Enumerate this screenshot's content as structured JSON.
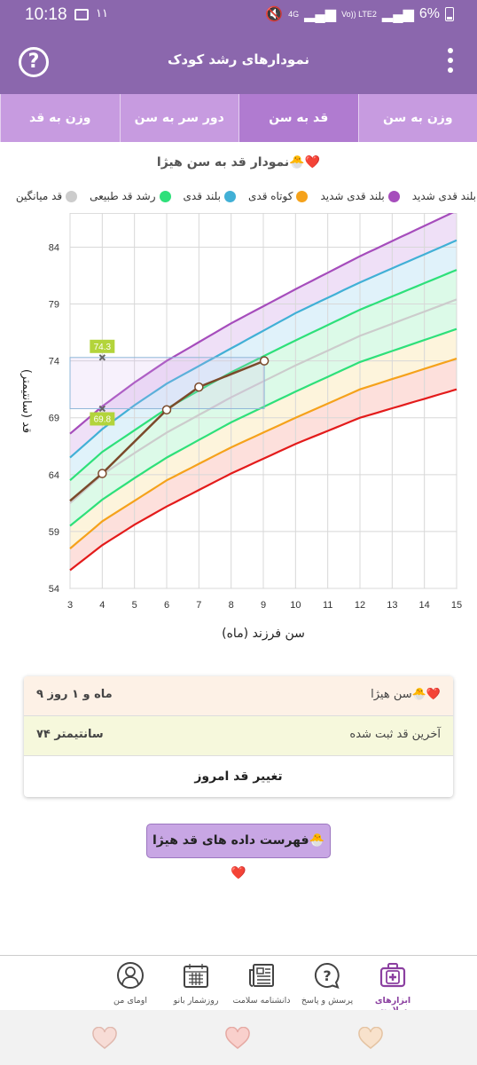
{
  "status": {
    "time": "10:18",
    "notif": "۱۱",
    "net": "4G",
    "lte": "Vo)) LTE2",
    "battery": "6%"
  },
  "app": {
    "title": "نمودارهای رشد کودک"
  },
  "tabs": [
    "وزن به سن",
    "قد به سن",
    "دور سر به سن",
    "وزن به قد"
  ],
  "chart_title": "نمودار قد به سن هیژا🐣❤️",
  "legend": [
    {
      "label": "بلند قدی شدید",
      "color": "#a64dbc"
    },
    {
      "label": "کوتاه قدی",
      "color": "#f5a21b"
    },
    {
      "label": "بلند قدی",
      "color": "#41b0d6"
    },
    {
      "label": "رشد قد طبیعی",
      "color": "#2ee07a"
    },
    {
      "label": "قد میانگین",
      "color": "#cccccc"
    }
  ],
  "legend_cut": {
    "label": "بلند قدی شدید",
    "color": "#e31b1b"
  },
  "chart_data": {
    "type": "line",
    "xlabel": "سن فرزند (ماه)",
    "ylabel": "قد (سانتیمتر)",
    "xlim": [
      3,
      15
    ],
    "ylim": [
      54,
      87
    ],
    "xticks": [
      3,
      4,
      5,
      6,
      7,
      8,
      9,
      10,
      11,
      12,
      13,
      14,
      15
    ],
    "yticks": [
      54,
      59,
      64,
      69,
      74,
      79,
      84
    ],
    "series": [
      {
        "color": "#a64dbc",
        "x": [
          3,
          4,
          5,
          6,
          8,
          10,
          12,
          15
        ],
        "y": [
          67.6,
          70.0,
          72.1,
          74.0,
          77.3,
          80.3,
          83.2,
          87.2
        ]
      },
      {
        "color": "#41b0d6",
        "x": [
          3,
          4,
          5,
          6,
          8,
          10,
          12,
          15
        ],
        "y": [
          65.5,
          68.0,
          70.1,
          72.0,
          75.1,
          78.2,
          80.9,
          84.6
        ]
      },
      {
        "color": "#2ee07a",
        "x": [
          3,
          4,
          5,
          6,
          8,
          10,
          12,
          15
        ],
        "y": [
          63.5,
          66.0,
          67.9,
          69.8,
          73.0,
          75.8,
          78.5,
          82.0
        ]
      },
      {
        "color": "#cccccc",
        "x": [
          3,
          4,
          5,
          6,
          8,
          10,
          12,
          15
        ],
        "y": [
          61.5,
          64.0,
          65.9,
          67.7,
          70.8,
          73.6,
          76.2,
          79.4
        ]
      },
      {
        "color": "#2ee07a",
        "x": [
          3,
          4,
          5,
          6,
          8,
          10,
          12,
          15
        ],
        "y": [
          59.5,
          61.8,
          63.7,
          65.5,
          68.6,
          71.3,
          73.9,
          76.8
        ]
      },
      {
        "color": "#f5a21b",
        "x": [
          3,
          4,
          5,
          6,
          8,
          10,
          12,
          15
        ],
        "y": [
          57.5,
          59.9,
          61.7,
          63.5,
          66.4,
          69.0,
          71.5,
          74.2
        ]
      },
      {
        "color": "#e31b1b",
        "x": [
          3,
          4,
          5,
          6,
          8,
          10,
          12,
          15
        ],
        "y": [
          55.6,
          57.8,
          59.6,
          61.2,
          64.1,
          66.7,
          69.0,
          71.5
        ]
      }
    ],
    "child": {
      "color": "#7b4a2b",
      "x": [
        3,
        4,
        6,
        7,
        9.03
      ],
      "y": [
        61.7,
        64.1,
        69.7,
        71.7,
        74.0
      ]
    },
    "markers": [
      {
        "x": 4,
        "y": 74.3,
        "label": "74.3"
      },
      {
        "x": 4,
        "y": 69.8,
        "label": "69.8"
      }
    ],
    "highlight": {
      "x0": 3,
      "x1": 9.03,
      "y0": 69.8,
      "y1": 74.3
    }
  },
  "info": {
    "name_label": "سن هیژا🐣❤️",
    "age_value": "۹ ماه و ۱ روز",
    "last_label": "آخرین قد ثبت شده",
    "last_value": "۷۴ سانتیمتر",
    "change_btn": "تغییر قد امروز"
  },
  "list_btn": "فهرست داده های قد هیژا🐣❤️",
  "nav": [
    {
      "label": "ابزارهای سلامت",
      "icon": "medical-kit-icon",
      "active": true
    },
    {
      "label": "پرسش و پاسخ",
      "icon": "question-bubble-icon"
    },
    {
      "label": "دانشنامه سلامت",
      "icon": "newspaper-icon"
    },
    {
      "label": "روزشمار بانو",
      "icon": "calendar-icon"
    },
    {
      "label": "اومای من",
      "icon": "profile-icon"
    }
  ]
}
